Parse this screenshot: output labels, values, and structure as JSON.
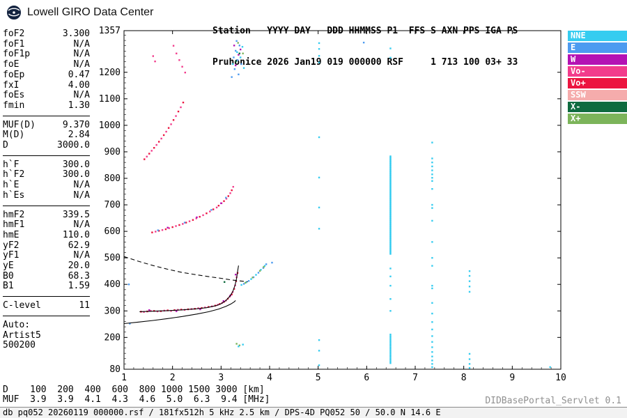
{
  "header": {
    "logo_title": "Lowell GIRO Data Center",
    "station_line1": "Station   YYYY DAY   DDD HHMMSS P1  FFS S AXN PPS IGA PS",
    "station_line2": "Pruhonice 2026 Jan19 019 000000 RSF     1 713 100 03+ 33"
  },
  "parameters": {
    "groups": [
      {
        "rows": [
          [
            "foF2",
            "3.300"
          ],
          [
            "foF1",
            "N/A"
          ],
          [
            "foF1p",
            "N/A"
          ],
          [
            "foE",
            "N/A"
          ],
          [
            "foEp",
            "0.47"
          ],
          [
            "fxI",
            "4.00"
          ],
          [
            "foEs",
            "N/A"
          ],
          [
            "fmin",
            "1.30"
          ]
        ]
      },
      {
        "rows": [
          [
            "MUF(D)",
            "9.370"
          ],
          [
            "M(D)",
            "2.84"
          ],
          [
            "D",
            "3000.0"
          ]
        ]
      },
      {
        "rows": [
          [
            "h`F",
            "300.0"
          ],
          [
            "h`F2",
            "300.0"
          ],
          [
            "h`E",
            "N/A"
          ],
          [
            "h`Es",
            "N/A"
          ]
        ]
      },
      {
        "rows": [
          [
            "hmF2",
            "339.5"
          ],
          [
            "hmF1",
            "N/A"
          ],
          [
            "hmE",
            "110.0"
          ],
          [
            "yF2",
            "62.9"
          ],
          [
            "yF1",
            "N/A"
          ],
          [
            "yE",
            "20.0"
          ],
          [
            "B0",
            "68.3"
          ],
          [
            "B1",
            "1.59"
          ]
        ]
      },
      {
        "rows": [
          [
            "C-level",
            "11"
          ]
        ]
      }
    ],
    "auto_label": "Auto:",
    "auto_lines": [
      "Artist5",
      "500200"
    ]
  },
  "legend": {
    "items": [
      {
        "label": "NNE",
        "color": "#35CCF0"
      },
      {
        "label": "E",
        "color": "#4D9BF0"
      },
      {
        "label": "W",
        "color": "#B412B4"
      },
      {
        "label": "Vo-",
        "color": "#F23C8C"
      },
      {
        "label": "Vo+",
        "color": "#EC1540"
      },
      {
        "label": "SSW",
        "color": "#F5ACAC"
      },
      {
        "label": "X-",
        "color": "#0F6B3F"
      },
      {
        "label": "X+",
        "color": "#7CB45A"
      }
    ]
  },
  "chart_data": {
    "type": "scatter",
    "title": "Pruhonice ionogram 2026 Jan19 019 000000 RSF",
    "xlabel": "[MHz]",
    "ylabel": "[km]",
    "xlim": [
      1,
      10
    ],
    "ylim": [
      80,
      1357
    ],
    "x_ticks": [
      1,
      2,
      3,
      4,
      5,
      6,
      7,
      8,
      9,
      10
    ],
    "y_ticks": [
      80,
      200,
      300,
      400,
      500,
      600,
      700,
      800,
      900,
      1000,
      1100,
      1200,
      1357
    ],
    "grid": false,
    "legend_position": "right",
    "colors": {
      "NNE": "#35CCF0",
      "E": "#4D9BF0",
      "W": "#B412B4",
      "Vo-": "#F23C8C",
      "Vo+": "#EC1540",
      "SSW": "#F5ACAC",
      "X-": "#0F6B3F",
      "X+": "#7CB45A",
      "trace": "#000000"
    },
    "echo_series": [
      {
        "name": "f-trace-red",
        "color": "Vo+",
        "points": [
          [
            1.35,
            297
          ],
          [
            1.48,
            298
          ],
          [
            1.62,
            300
          ],
          [
            1.76,
            299
          ],
          [
            1.9,
            302
          ],
          [
            2.04,
            303
          ],
          [
            2.18,
            305
          ],
          [
            2.32,
            306
          ],
          [
            2.46,
            308
          ],
          [
            2.6,
            311
          ],
          [
            2.74,
            315
          ],
          [
            2.88,
            320
          ],
          [
            2.97,
            326
          ],
          [
            3.06,
            334
          ],
          [
            3.14,
            346
          ],
          [
            3.22,
            362
          ],
          [
            3.27,
            383
          ],
          [
            3.31,
            412
          ],
          [
            3.34,
            443
          ]
        ]
      },
      {
        "name": "f-trace-pink",
        "color": "Vo-",
        "points": [
          [
            1.41,
            296
          ],
          [
            1.55,
            300
          ],
          [
            1.69,
            298
          ],
          [
            1.83,
            301
          ],
          [
            1.97,
            300
          ],
          [
            2.11,
            304
          ],
          [
            2.25,
            304
          ],
          [
            2.39,
            307
          ],
          [
            2.53,
            310
          ],
          [
            2.67,
            313
          ],
          [
            2.81,
            317
          ],
          [
            2.93,
            323
          ],
          [
            3.02,
            330
          ],
          [
            3.1,
            339
          ],
          [
            3.18,
            354
          ],
          [
            3.24,
            371
          ],
          [
            3.29,
            396
          ],
          [
            3.32,
            427
          ]
        ]
      },
      {
        "name": "f-trace-magenta",
        "color": "W",
        "points": [
          [
            1.52,
            303
          ],
          [
            2.08,
            299
          ],
          [
            2.57,
            306
          ],
          [
            3.05,
            337
          ],
          [
            3.19,
            358
          ],
          [
            3.3,
            437
          ]
        ]
      },
      {
        "name": "xmode-cyan",
        "color": "NNE",
        "points": [
          [
            3.42,
            398
          ],
          [
            3.52,
            408
          ],
          [
            3.62,
            420
          ],
          [
            3.72,
            436
          ],
          [
            3.82,
            455
          ],
          [
            3.9,
            470
          ]
        ]
      },
      {
        "name": "xmode-blue",
        "color": "E",
        "points": [
          [
            3.47,
            402
          ],
          [
            3.57,
            413
          ],
          [
            3.67,
            427
          ],
          [
            3.77,
            444
          ],
          [
            3.87,
            462
          ],
          [
            3.93,
            476
          ]
        ]
      },
      {
        "name": "xmode-green",
        "color": "X+",
        "points": [
          [
            3.5,
            406
          ],
          [
            3.65,
            426
          ],
          [
            3.8,
            451
          ],
          [
            3.88,
            466
          ]
        ]
      },
      {
        "name": "hop2-red",
        "color": "Vo+",
        "points": [
          [
            1.58,
            596
          ],
          [
            1.72,
            602
          ],
          [
            1.86,
            608
          ],
          [
            2.0,
            616
          ],
          [
            2.14,
            624
          ],
          [
            2.28,
            633
          ],
          [
            2.42,
            643
          ],
          [
            2.56,
            655
          ],
          [
            2.7,
            668
          ],
          [
            2.84,
            683
          ],
          [
            2.95,
            697
          ],
          [
            3.06,
            714
          ],
          [
            3.15,
            733
          ],
          [
            3.22,
            755
          ]
        ]
      },
      {
        "name": "hop2-pink",
        "color": "Vo-",
        "points": [
          [
            1.65,
            599
          ],
          [
            1.79,
            605
          ],
          [
            1.93,
            612
          ],
          [
            2.07,
            620
          ],
          [
            2.21,
            628
          ],
          [
            2.35,
            638
          ],
          [
            2.49,
            649
          ],
          [
            2.63,
            661
          ],
          [
            2.77,
            675
          ],
          [
            2.91,
            690
          ],
          [
            3.01,
            706
          ],
          [
            3.11,
            723
          ],
          [
            3.19,
            744
          ],
          [
            3.25,
            768
          ]
        ]
      },
      {
        "name": "hop2-blue",
        "color": "E",
        "points": [
          [
            1.7,
            604
          ],
          [
            2.25,
            633
          ],
          [
            2.8,
            681
          ],
          [
            3.1,
            727
          ]
        ]
      },
      {
        "name": "hop2-magenta",
        "color": "W",
        "points": [
          [
            1.9,
            614
          ],
          [
            2.5,
            653
          ],
          [
            3.0,
            706
          ]
        ]
      },
      {
        "name": "hop3-red",
        "color": "Vo+",
        "points": [
          [
            1.42,
            872
          ],
          [
            1.52,
            893
          ],
          [
            1.62,
            915
          ],
          [
            1.72,
            938
          ],
          [
            1.82,
            963
          ],
          [
            1.92,
            990
          ],
          [
            2.02,
            1020
          ],
          [
            2.12,
            1052
          ],
          [
            2.22,
            1086
          ]
        ]
      },
      {
        "name": "hop3-pink",
        "color": "Vo-",
        "points": [
          [
            1.47,
            882
          ],
          [
            1.57,
            904
          ],
          [
            1.67,
            926
          ],
          [
            1.77,
            950
          ],
          [
            1.87,
            976
          ],
          [
            1.97,
            1004
          ],
          [
            2.07,
            1035
          ],
          [
            2.17,
            1068
          ]
        ]
      },
      {
        "name": "top-cluster-blue",
        "color": "E",
        "points": [
          [
            3.22,
            1182
          ],
          [
            3.28,
            1212
          ],
          [
            3.34,
            1246
          ],
          [
            3.3,
            1281
          ],
          [
            3.38,
            1301
          ],
          [
            3.26,
            1256
          ],
          [
            3.42,
            1231
          ],
          [
            3.36,
            1192
          ],
          [
            3.32,
            1318
          ]
        ]
      },
      {
        "name": "top-cluster-magenta",
        "color": "W",
        "points": [
          [
            3.3,
            1226
          ],
          [
            3.36,
            1266
          ],
          [
            3.4,
            1286
          ],
          [
            3.27,
            1301
          ]
        ]
      },
      {
        "name": "top-cluster-cyan",
        "color": "NNE",
        "points": [
          [
            3.24,
            1231
          ],
          [
            3.33,
            1276
          ],
          [
            3.44,
            1296
          ],
          [
            3.4,
            1256
          ],
          [
            3.47,
            1216
          ]
        ]
      },
      {
        "name": "top-cluster-darkgreen",
        "color": "X-",
        "points": [
          [
            3.31,
            1241
          ],
          [
            3.38,
            1271
          ]
        ]
      },
      {
        "name": "top-cluster-green",
        "color": "X+",
        "points": [
          [
            3.35,
            1311
          ],
          [
            3.45,
            1271
          ]
        ]
      },
      {
        "name": "midtop-pink",
        "color": "Vo-",
        "points": [
          [
            2.02,
            1300
          ],
          [
            2.08,
            1271
          ],
          [
            2.14,
            1246
          ],
          [
            2.2,
            1221
          ],
          [
            2.26,
            1199
          ],
          [
            1.6,
            1261
          ],
          [
            1.64,
            1241
          ]
        ]
      },
      {
        "name": "es-cluster-green",
        "color": "X+",
        "points": [
          [
            3.32,
            176
          ],
          [
            3.38,
            170
          ]
        ]
      },
      {
        "name": "es-cluster-cyan",
        "color": "NNE",
        "points": [
          [
            3.45,
            173
          ],
          [
            3.36,
            166
          ]
        ]
      },
      {
        "name": "noise-blue",
        "color": "E",
        "points": [
          [
            1.1,
            400
          ],
          [
            1.12,
            252
          ],
          [
            5.94,
            1312
          ],
          [
            4.05,
            482
          ]
        ]
      },
      {
        "name": "noise-darkgreen",
        "color": "X-",
        "points": [
          [
            3.07,
            409
          ]
        ]
      }
    ],
    "rfi_lines": [
      {
        "color": "NNE",
        "f": 6.49,
        "segments": [
          [
            515,
            885,
            4
          ],
          [
            103,
            213,
            6
          ]
        ],
        "dots": [
          300,
          345,
          395,
          430,
          460,
          1255,
          1290
        ]
      },
      {
        "color": "NNE",
        "f": 7.35,
        "dots": [
          88,
          100,
          113,
          128,
          145,
          163,
          183,
          205,
          230,
          258,
          290,
          330,
          385,
          395,
          470,
          500,
          560,
          640,
          688,
          700,
          760,
          790,
          802,
          815,
          830,
          845,
          860,
          875,
          935
        ]
      },
      {
        "color": "NNE",
        "f": 5.02,
        "dots": [
          95,
          150,
          190,
          610,
          690,
          803,
          955,
          1237,
          1262,
          1288,
          1310
        ]
      },
      {
        "color": "NNE",
        "f": 8.12,
        "dots": [
          85,
          100,
          118,
          138,
          372,
          392,
          412,
          432,
          450
        ]
      },
      {
        "color": "NNE",
        "f": 9.78,
        "dots": [
          88
        ]
      }
    ],
    "trace_lines": [
      {
        "name": "true-height-profile",
        "style": "solid",
        "points": [
          [
            1.0,
            252
          ],
          [
            1.3,
            258
          ],
          [
            1.6,
            264
          ],
          [
            1.9,
            271
          ],
          [
            2.2,
            279
          ],
          [
            2.5,
            288
          ],
          [
            2.75,
            297
          ],
          [
            2.95,
            307
          ],
          [
            3.1,
            317
          ],
          [
            3.2,
            326
          ],
          [
            3.27,
            334
          ],
          [
            3.3,
            339
          ]
        ]
      },
      {
        "name": "fitted-h-trace",
        "style": "solid",
        "points": [
          [
            1.32,
            297
          ],
          [
            1.6,
            299
          ],
          [
            1.9,
            301
          ],
          [
            2.2,
            304
          ],
          [
            2.5,
            308
          ],
          [
            2.7,
            312
          ],
          [
            2.9,
            320
          ],
          [
            3.0,
            327
          ],
          [
            3.1,
            339
          ],
          [
            3.18,
            355
          ],
          [
            3.24,
            373
          ],
          [
            3.29,
            398
          ],
          [
            3.32,
            423
          ],
          [
            3.34,
            448
          ],
          [
            3.36,
            471
          ]
        ]
      },
      {
        "name": "muf-transmission-curve",
        "style": "dashed",
        "points": [
          [
            1.0,
            505
          ],
          [
            1.3,
            487
          ],
          [
            1.6,
            471
          ],
          [
            1.9,
            457
          ],
          [
            2.2,
            445
          ],
          [
            2.5,
            436
          ],
          [
            2.8,
            428
          ],
          [
            3.0,
            423
          ],
          [
            3.2,
            417
          ],
          [
            3.4,
            413
          ],
          [
            3.55,
            410
          ]
        ]
      }
    ]
  },
  "muf_table": {
    "rows": [
      {
        "label": "D",
        "values": [
          "100",
          "200",
          "400",
          "600",
          "800",
          "1000",
          "1500",
          "3000"
        ],
        "unit": "[km]"
      },
      {
        "label": "MUF",
        "values": [
          "3.9",
          "3.9",
          "4.1",
          "4.3",
          "4.6",
          "5.0",
          "6.3",
          "9.4"
        ],
        "unit": "[MHz]"
      }
    ]
  },
  "footer": {
    "servlet_label": "DIDBasePortal_Servlet 0.1",
    "status": "db pq052 20260119 000000.rsf / 181fx512h 5 kHz 2.5 km / DPS-4D PQ052 50 / 50.0 N 14.6 E"
  }
}
